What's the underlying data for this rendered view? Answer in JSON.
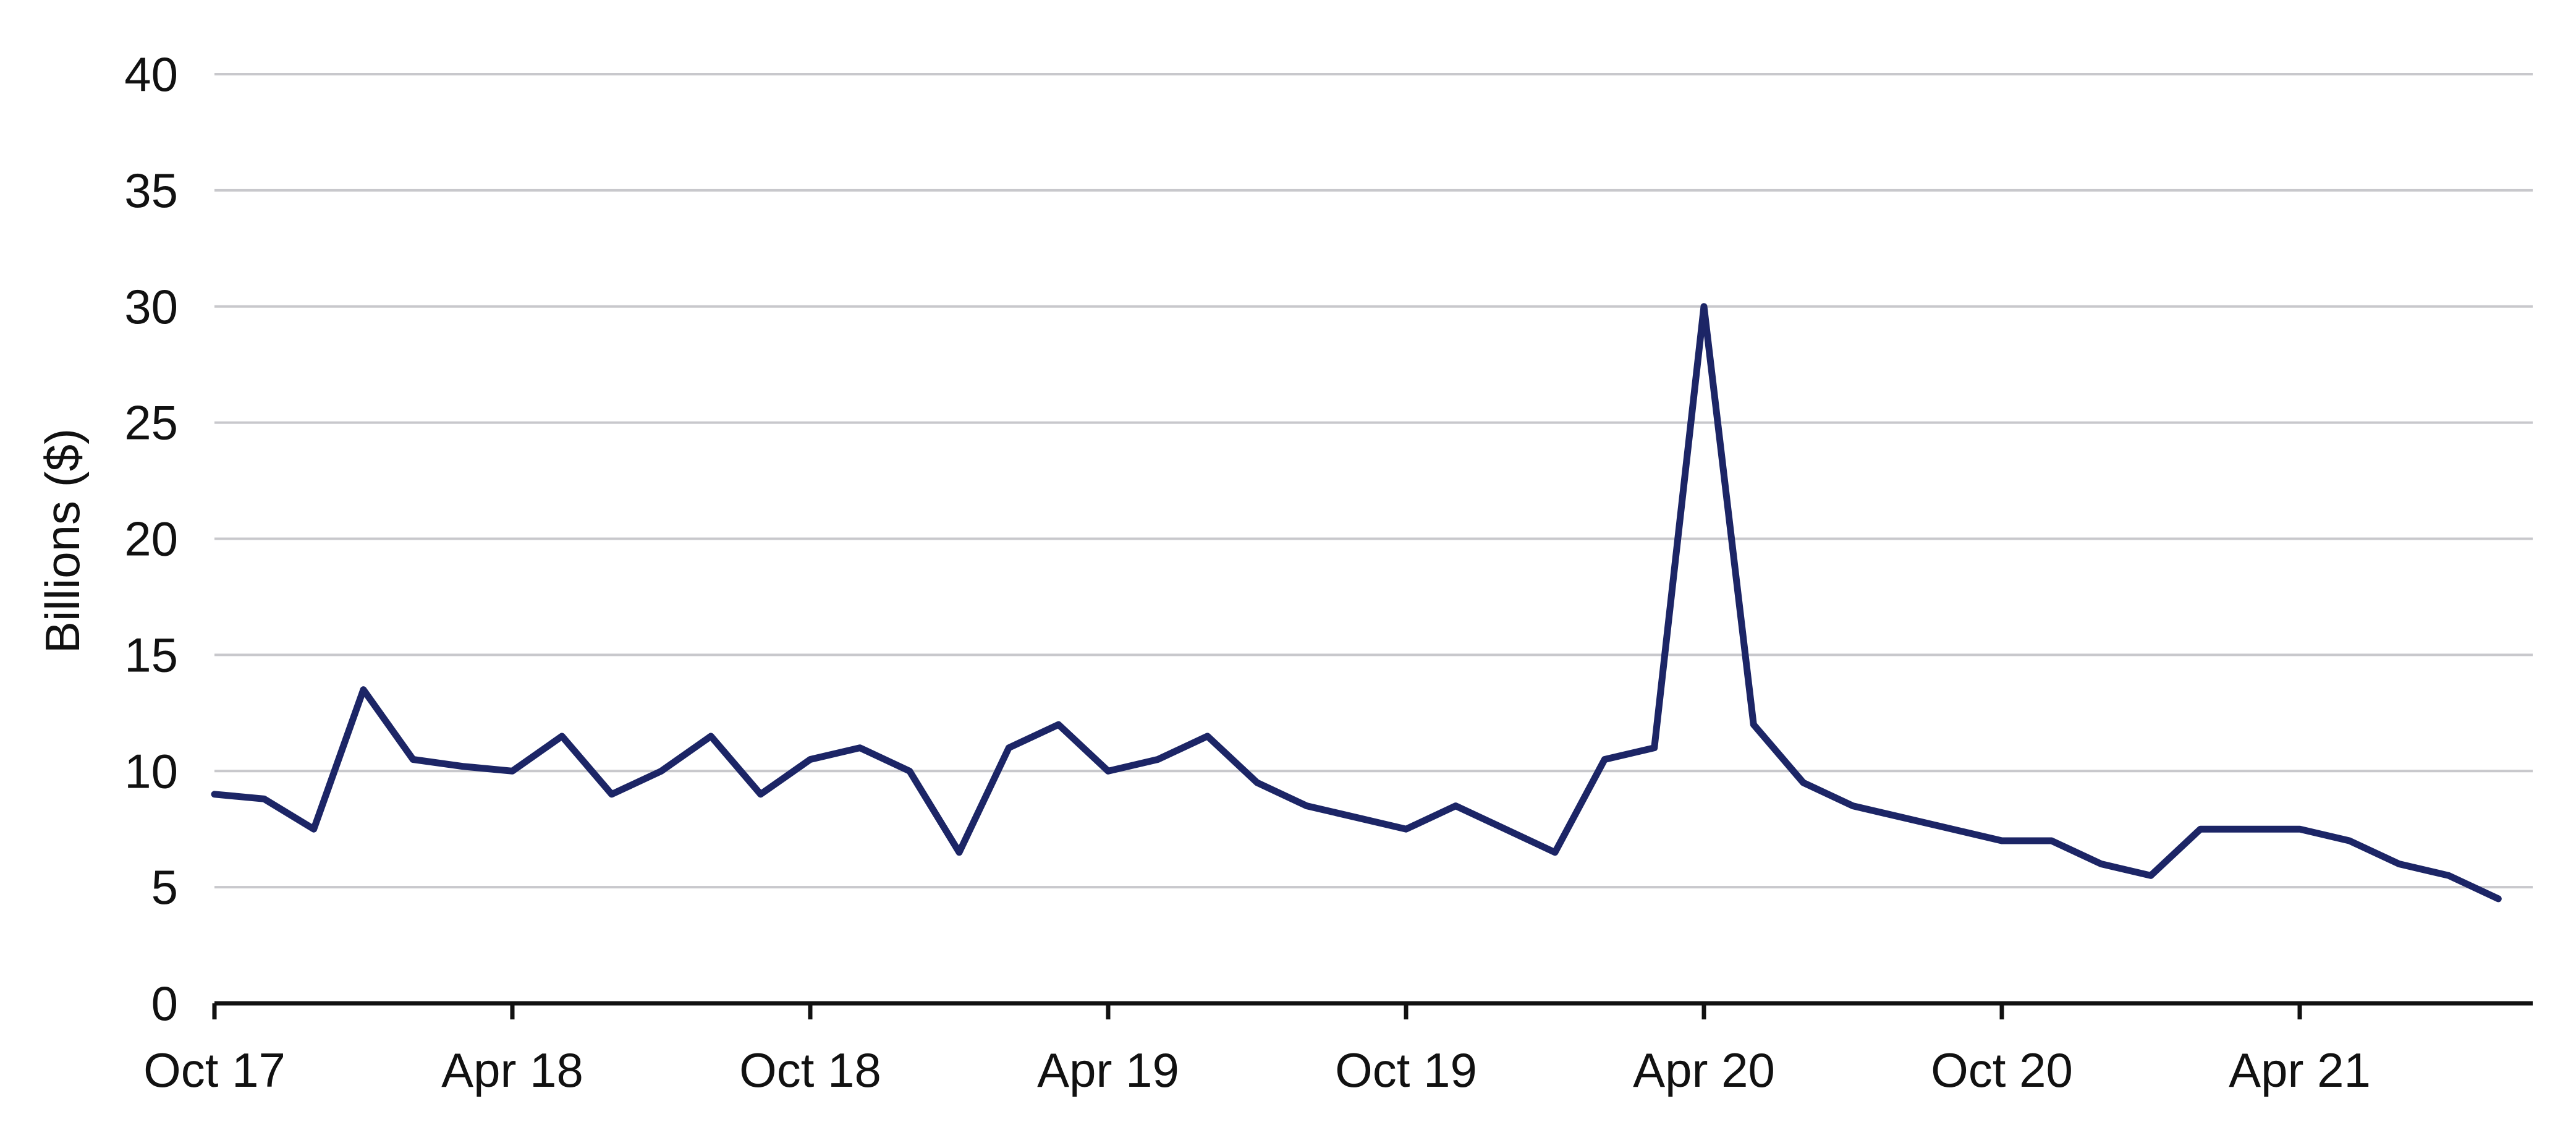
{
  "chart_data": {
    "type": "line",
    "title": "",
    "xlabel": "",
    "ylabel": "Billions ($)",
    "ylim": [
      0,
      40
    ],
    "yticks": [
      0,
      5,
      10,
      15,
      20,
      25,
      30,
      35,
      40
    ],
    "xticks": [
      "Oct 17",
      "Apr 18",
      "Oct 18",
      "Apr 19",
      "Oct 19",
      "Apr 20",
      "Oct 20",
      "Apr 21"
    ],
    "grid": true,
    "line_color": "#1c2566",
    "series": [
      {
        "x": [
          "2017-10",
          "2017-11",
          "2017-12",
          "2018-01",
          "2018-02",
          "2018-03",
          "2018-04",
          "2018-05",
          "2018-06",
          "2018-07",
          "2018-08",
          "2018-09",
          "2018-10",
          "2018-11",
          "2018-12",
          "2019-01",
          "2019-02",
          "2019-03",
          "2019-04",
          "2019-05",
          "2019-06",
          "2019-07",
          "2019-08",
          "2019-09",
          "2019-10",
          "2019-11",
          "2019-12",
          "2020-01",
          "2020-02",
          "2020-03",
          "2020-04",
          "2020-05",
          "2020-06",
          "2020-07",
          "2020-08",
          "2020-09",
          "2020-10",
          "2020-11",
          "2020-12",
          "2021-01",
          "2021-02",
          "2021-03",
          "2021-04",
          "2021-05",
          "2021-06",
          "2021-07",
          "2021-08"
        ],
        "values": [
          9.0,
          8.8,
          7.5,
          13.5,
          10.5,
          10.2,
          10.0,
          11.5,
          9.0,
          10.0,
          11.5,
          9.0,
          10.5,
          11.0,
          10.0,
          6.5,
          11.0,
          12.0,
          10.0,
          10.5,
          11.5,
          9.5,
          8.5,
          8.0,
          7.5,
          8.5,
          7.5,
          6.5,
          10.5,
          11.0,
          30.0,
          12.0,
          9.5,
          8.5,
          8.0,
          7.5,
          7.0,
          7.0,
          6.0,
          5.5,
          7.5,
          7.5,
          7.5,
          7.0,
          6.0,
          5.5,
          4.5
        ]
      }
    ]
  }
}
